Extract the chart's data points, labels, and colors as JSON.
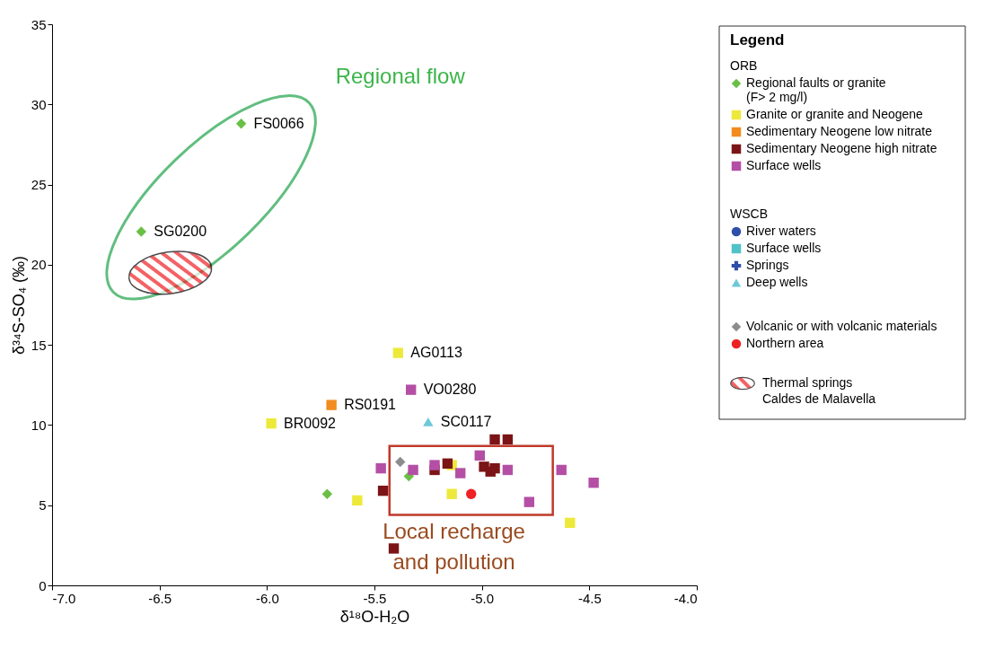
{
  "chart_data": {
    "type": "scatter",
    "xlabel": "δ¹⁸O-H₂O",
    "ylabel": "δ³⁴S-SO₄ (‰)",
    "legend_title": "Legend",
    "legend": "right",
    "xlim": [
      -7,
      -4
    ],
    "xticks": [
      {
        "value": -7,
        "label": "-7.0"
      },
      {
        "value": -6.5,
        "label": "-6.5"
      },
      {
        "value": -6,
        "label": "-6.0"
      },
      {
        "value": -5.5,
        "label": "-5.5"
      },
      {
        "value": -5,
        "label": "-5.0"
      },
      {
        "value": -4.5,
        "label": "-4.5"
      },
      {
        "value": -4,
        "label": "-4.0"
      }
    ],
    "ylim": [
      0,
      35
    ],
    "yticks": [
      0,
      5,
      10,
      15,
      20,
      25,
      30,
      35
    ],
    "series": [
      {
        "name": "Regional faults or granite\n(F> 2 mg/l)",
        "color": "#6abf45",
        "marker": "diamond",
        "x": [
          -6.12,
          -6.585,
          -5.72,
          -5.34
        ],
        "values": [
          28.8,
          22.06,
          5.7,
          6.8
        ]
      },
      {
        "name": "Granite or granite and Neogene",
        "color": "#ede93b",
        "marker": "square",
        "x": [
          -5.98,
          -5.39,
          -5.58,
          -5.14,
          -4.59,
          -5.14
        ],
        "values": [
          10.1,
          14.5,
          5.3,
          5.7,
          3.9,
          7.5
        ]
      },
      {
        "name": "Sedimentary Neogene low nitrate",
        "color": "#f28c1e",
        "marker": "square",
        "x": [
          -5.7
        ],
        "values": [
          11.25
        ]
      },
      {
        "name": "Sedimentary Neogene high nitrate",
        "color": "#7b1416",
        "marker": "square",
        "x": [
          -5.46,
          -5.41,
          -4.94,
          -4.88,
          -5.16,
          -5.22,
          -4.99,
          -4.94,
          -4.96
        ],
        "values": [
          5.9,
          2.3,
          9.1,
          9.1,
          7.6,
          7.2,
          7.4,
          7.3,
          7.1
        ]
      },
      {
        "name": "Surface wells",
        "color": "#b44fa5",
        "marker": "square",
        "x": [
          -5.33,
          -5.47,
          -5.32,
          -5.22,
          -5.1,
          -5.01,
          -4.88,
          -4.63,
          -4.48,
          -4.78
        ],
        "values": [
          12.2,
          7.3,
          7.2,
          7.5,
          7.0,
          8.1,
          7.2,
          7.2,
          6.4,
          5.2
        ]
      },
      {
        "name": "River waters",
        "color": "#2e4fa8",
        "marker": "circle"
      },
      {
        "name": "Surface wells",
        "color": "#4fc3c8",
        "marker": "square"
      },
      {
        "name": "Springs",
        "color": "#2e4fa8",
        "marker": "cross"
      },
      {
        "name": "Deep wells",
        "color": "#6cc9d8",
        "marker": "triangle",
        "x": [
          -5.25
        ],
        "values": [
          10.2
        ]
      },
      {
        "name": "Volcanic or with volcanic materials",
        "color": "#8c8c8c",
        "marker": "diamond",
        "x": [
          -5.38
        ],
        "values": [
          7.7
        ]
      },
      {
        "name": "Northern area",
        "color": "#ee2124",
        "marker": "circle",
        "x": [
          -5.05
        ],
        "values": [
          5.7
        ]
      }
    ],
    "annotations": [
      "ORB",
      "WSCB",
      "Regional flow",
      "Local recharge\nand pollution",
      "Thermal springs\nCaldes de Malavella",
      {
        "text": "FS0066",
        "x": -6.12,
        "y": 28.8
      },
      {
        "text": "SG0200",
        "x": -6.585,
        "y": 22.06
      },
      {
        "text": "AG0113",
        "x": -5.39,
        "y": 14.5
      },
      {
        "text": "VO0280",
        "x": -5.33,
        "y": 12.2
      },
      {
        "text": "RS0191",
        "x": -5.7,
        "y": 11.25
      },
      {
        "text": "SC0117",
        "x": -5.25,
        "y": 10.2
      },
      {
        "text": "BR0092",
        "x": -5.98,
        "y": 10.1
      }
    ]
  }
}
